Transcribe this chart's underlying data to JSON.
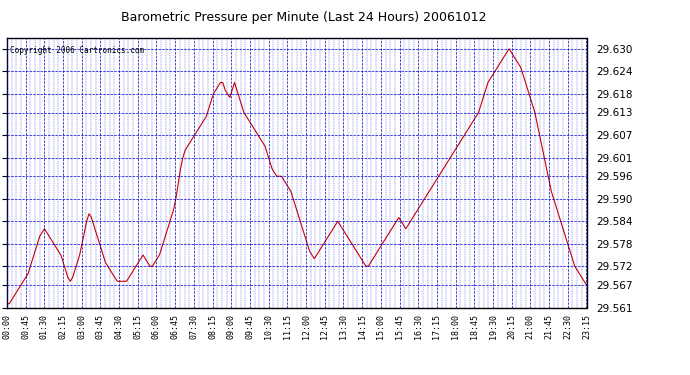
{
  "title": "Barometric Pressure per Minute (Last 24 Hours) 20061012",
  "copyright": "Copyright 2006 Cartronics.com",
  "background_color": "#ffffff",
  "plot_bg_color": "#ffffff",
  "line_color": "#cc0000",
  "grid_color": "#0000cc",
  "ylim": [
    29.561,
    29.633
  ],
  "yticks": [
    29.561,
    29.567,
    29.572,
    29.578,
    29.584,
    29.59,
    29.596,
    29.601,
    29.607,
    29.613,
    29.618,
    29.624,
    29.63
  ],
  "xtick_labels": [
    "00:00",
    "00:45",
    "01:30",
    "02:15",
    "03:00",
    "03:45",
    "04:30",
    "05:15",
    "06:00",
    "06:45",
    "07:30",
    "08:15",
    "09:00",
    "09:45",
    "10:30",
    "11:15",
    "12:00",
    "12:45",
    "13:30",
    "14:15",
    "15:00",
    "15:45",
    "16:30",
    "17:15",
    "18:00",
    "18:45",
    "19:30",
    "20:15",
    "21:00",
    "21:45",
    "22:30",
    "23:15"
  ],
  "data_y": [
    29.562,
    29.562,
    29.563,
    29.564,
    29.565,
    29.566,
    29.567,
    29.568,
    29.569,
    29.57,
    29.572,
    29.574,
    29.576,
    29.578,
    29.58,
    29.581,
    29.582,
    29.581,
    29.58,
    29.579,
    29.578,
    29.577,
    29.576,
    29.575,
    29.573,
    29.571,
    29.569,
    29.568,
    29.569,
    29.571,
    29.573,
    29.575,
    29.578,
    29.581,
    29.584,
    29.586,
    29.585,
    29.583,
    29.581,
    29.579,
    29.577,
    29.575,
    29.573,
    29.572,
    29.571,
    29.57,
    29.569,
    29.568,
    29.568,
    29.568,
    29.568,
    29.568,
    29.569,
    29.57,
    29.571,
    29.572,
    29.573,
    29.574,
    29.575,
    29.574,
    29.573,
    29.572,
    29.572,
    29.573,
    29.574,
    29.575,
    29.577,
    29.579,
    29.581,
    29.583,
    29.585,
    29.587,
    29.59,
    29.594,
    29.598,
    29.601,
    29.603,
    29.604,
    29.605,
    29.606,
    29.607,
    29.608,
    29.609,
    29.61,
    29.611,
    29.612,
    29.614,
    29.616,
    29.618,
    29.619,
    29.62,
    29.621,
    29.621,
    29.619,
    29.618,
    29.617,
    29.619,
    29.621,
    29.619,
    29.617,
    29.615,
    29.613,
    29.612,
    29.611,
    29.61,
    29.609,
    29.608,
    29.607,
    29.606,
    29.605,
    29.604,
    29.602,
    29.6,
    29.598,
    29.597,
    29.596,
    29.596,
    29.596,
    29.595,
    29.594,
    29.593,
    29.592,
    29.59,
    29.588,
    29.586,
    29.584,
    29.582,
    29.58,
    29.578,
    29.576,
    29.575,
    29.574,
    29.575,
    29.576,
    29.577,
    29.578,
    29.579,
    29.58,
    29.581,
    29.582,
    29.583,
    29.584,
    29.583,
    29.582,
    29.581,
    29.58,
    29.579,
    29.578,
    29.577,
    29.576,
    29.575,
    29.574,
    29.573,
    29.572,
    29.572,
    29.573,
    29.574,
    29.575,
    29.576,
    29.577,
    29.578,
    29.579,
    29.58,
    29.581,
    29.582,
    29.583,
    29.584,
    29.585,
    29.584,
    29.583,
    29.582,
    29.583,
    29.584,
    29.585,
    29.586,
    29.587,
    29.588,
    29.589,
    29.59,
    29.591,
    29.592,
    29.593,
    29.594,
    29.595,
    29.596,
    29.597,
    29.598,
    29.599,
    29.6,
    29.601,
    29.602,
    29.603,
    29.604,
    29.605,
    29.606,
    29.607,
    29.608,
    29.609,
    29.61,
    29.611,
    29.612,
    29.613,
    29.615,
    29.617,
    29.619,
    29.621,
    29.622,
    29.623,
    29.624,
    29.625,
    29.626,
    29.627,
    29.628,
    29.629,
    29.63,
    29.629,
    29.628,
    29.627,
    29.626,
    29.625,
    29.623,
    29.621,
    29.619,
    29.617,
    29.615,
    29.613,
    29.61,
    29.607,
    29.604,
    29.601,
    29.598,
    29.595,
    29.592,
    29.59,
    29.588,
    29.586,
    29.584,
    29.582,
    29.58,
    29.578,
    29.576,
    29.574,
    29.572,
    29.571,
    29.57,
    29.569,
    29.568,
    29.567
  ]
}
